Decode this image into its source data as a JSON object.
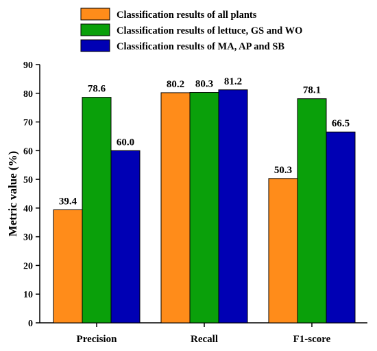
{
  "chart_data": {
    "type": "bar",
    "categories": [
      "Precision",
      "Recall",
      "F1-score"
    ],
    "series": [
      {
        "name": "Classification results of all plants",
        "color": "#ff8c1a",
        "values": [
          39.4,
          80.2,
          50.3
        ]
      },
      {
        "name": "Classification results of lettuce, GS and WO",
        "color": "#0aa00a",
        "values": [
          78.6,
          80.3,
          78.1
        ]
      },
      {
        "name": "Classification results of MA, AP and SB",
        "color": "#0000b4",
        "values": [
          60.0,
          81.2,
          66.5
        ]
      }
    ],
    "data_labels": [
      [
        "39.4",
        "80.2",
        "50.3"
      ],
      [
        "78.6",
        "80.3",
        "78.1"
      ],
      [
        "60.0",
        "81.2",
        "66.5"
      ]
    ],
    "ylabel": "Metric value (%)",
    "xlabel": "",
    "ylim": [
      0,
      90
    ],
    "yticks": [
      0,
      10,
      20,
      30,
      40,
      50,
      60,
      70,
      80,
      90
    ],
    "grid": false,
    "legend_position": "top"
  }
}
